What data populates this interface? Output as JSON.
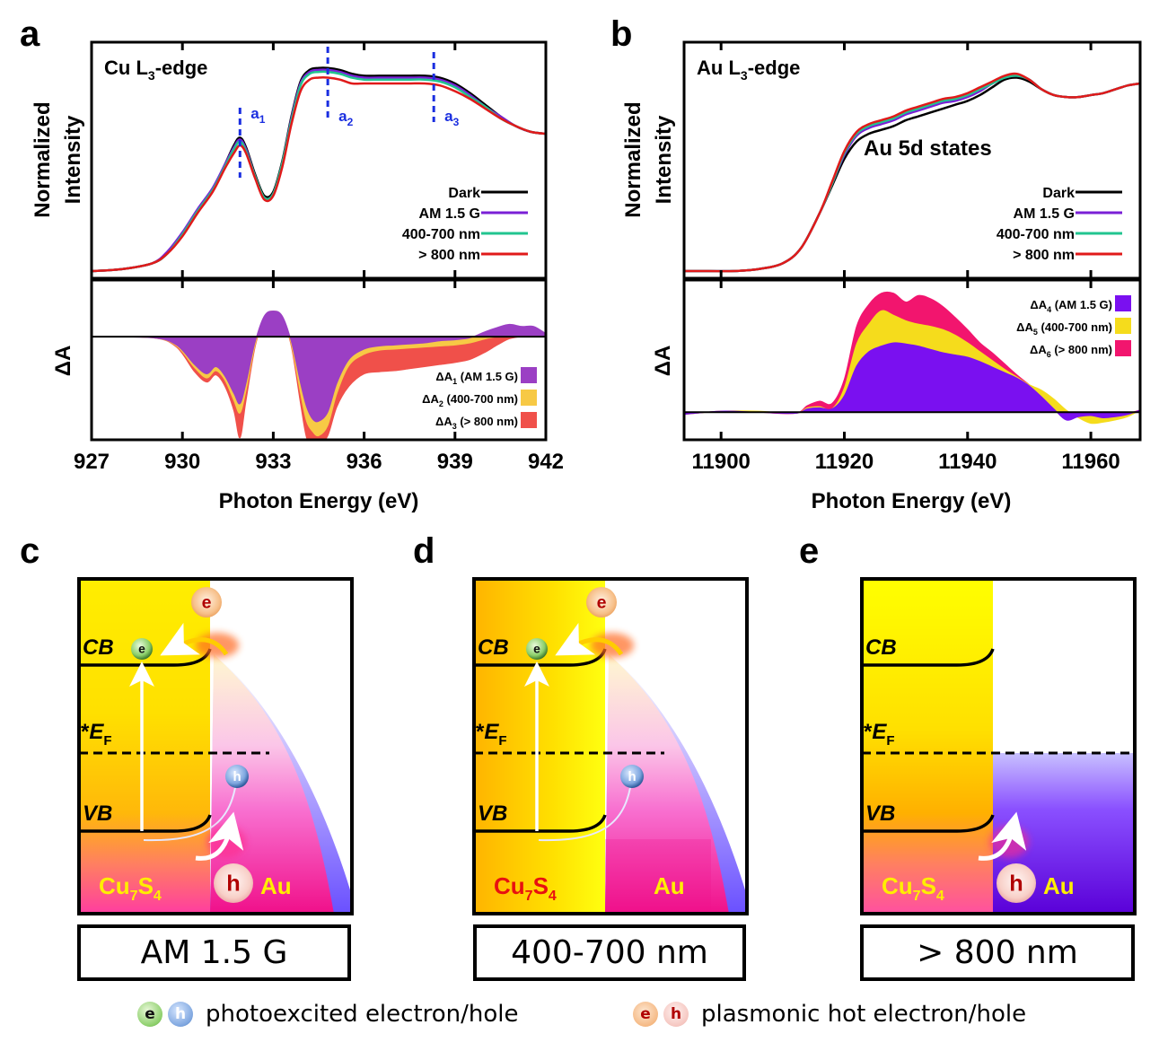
{
  "panel_letters": {
    "a": "a",
    "b": "b",
    "c": "c",
    "d": "d",
    "e": "e"
  },
  "chart_data": [
    {
      "id": "a-top",
      "type": "line",
      "title": "Cu L3-edge",
      "title_main": "Cu L",
      "title_sub": "3",
      "title_tail": "-edge",
      "xlabel": "Photon Energy (eV)",
      "ylabel": [
        "Normalized",
        "Intensity"
      ],
      "xlim": [
        927,
        942
      ],
      "ylim": [
        0,
        1.1
      ],
      "xticks": [
        927,
        930,
        933,
        936,
        939,
        942
      ],
      "legend_position": "bottom-right",
      "annotations": [
        {
          "x": 931.9,
          "label": "a",
          "sub": "1"
        },
        {
          "x": 934.8,
          "label": "a",
          "sub": "2"
        },
        {
          "x": 938.3,
          "label": "a",
          "sub": "3"
        }
      ],
      "x": [
        927,
        928,
        929,
        929.5,
        930,
        930.5,
        931,
        931.4,
        931.7,
        931.9,
        932.1,
        932.4,
        932.7,
        933.0,
        933.3,
        933.6,
        933.9,
        934.2,
        934.5,
        934.8,
        935.2,
        935.6,
        936.0,
        936.5,
        937.0,
        937.5,
        938.0,
        938.5,
        939.0,
        939.5,
        940.0,
        940.5,
        941.0,
        941.5,
        942.0
      ],
      "series": [
        {
          "name": "Dark",
          "color": "#000000",
          "values": [
            0.0,
            0.01,
            0.04,
            0.09,
            0.19,
            0.31,
            0.42,
            0.55,
            0.65,
            0.69,
            0.64,
            0.5,
            0.39,
            0.41,
            0.57,
            0.8,
            0.98,
            1.04,
            1.05,
            1.05,
            1.04,
            1.02,
            1.01,
            1.01,
            1.01,
            1.01,
            1.01,
            1.0,
            0.97,
            0.92,
            0.86,
            0.8,
            0.75,
            0.72,
            0.71
          ]
        },
        {
          "name": "AM 1.5 G",
          "color": "#7a1fd6",
          "values": [
            0.0,
            0.01,
            0.04,
            0.1,
            0.2,
            0.32,
            0.43,
            0.55,
            0.64,
            0.68,
            0.63,
            0.49,
            0.38,
            0.4,
            0.56,
            0.79,
            0.97,
            1.03,
            1.04,
            1.04,
            1.03,
            1.01,
            1.0,
            1.0,
            1.0,
            1.0,
            1.0,
            0.99,
            0.96,
            0.91,
            0.85,
            0.8,
            0.75,
            0.72,
            0.71
          ]
        },
        {
          "name": "400-700 nm",
          "color": "#22c48f",
          "values": [
            0.0,
            0.01,
            0.04,
            0.09,
            0.19,
            0.31,
            0.42,
            0.54,
            0.63,
            0.67,
            0.62,
            0.49,
            0.38,
            0.4,
            0.56,
            0.78,
            0.96,
            1.02,
            1.03,
            1.03,
            1.02,
            1.0,
            0.99,
            0.99,
            0.99,
            0.99,
            0.99,
            0.98,
            0.95,
            0.9,
            0.85,
            0.79,
            0.75,
            0.72,
            0.71
          ]
        },
        {
          "name": "> 800 nm",
          "color": "#e01a1a",
          "values": [
            0.0,
            0.01,
            0.04,
            0.09,
            0.18,
            0.3,
            0.41,
            0.53,
            0.61,
            0.65,
            0.61,
            0.48,
            0.37,
            0.39,
            0.54,
            0.76,
            0.93,
            0.99,
            1.0,
            1.0,
            0.99,
            0.97,
            0.97,
            0.97,
            0.97,
            0.97,
            0.97,
            0.96,
            0.93,
            0.89,
            0.84,
            0.79,
            0.75,
            0.72,
            0.71
          ]
        }
      ]
    },
    {
      "id": "a-bottom",
      "type": "area",
      "xlabel": "Photon Energy (eV)",
      "ylabel": "ΔA",
      "xlim": [
        927,
        942
      ],
      "ylim": [
        -1.0,
        0.55
      ],
      "xticks": [
        927,
        930,
        933,
        936,
        939,
        942
      ],
      "legend_position": "bottom-right",
      "x": [
        927,
        929,
        929.8,
        930.4,
        930.8,
        931.1,
        931.4,
        931.7,
        931.9,
        932.1,
        932.4,
        932.7,
        933.0,
        933.3,
        933.6,
        933.9,
        934.1,
        934.3,
        934.5,
        934.8,
        935.1,
        935.5,
        936.0,
        936.5,
        937.0,
        937.5,
        938.0,
        938.5,
        939.0,
        939.5,
        940.0,
        940.4,
        940.8,
        941.2,
        941.6,
        942.0
      ],
      "series": [
        {
          "name": "ΔA1 (AM 1.5 G)",
          "label_main": "ΔA",
          "label_sub": "1",
          "label_tail": " (AM 1.5 G)",
          "color": "#9b3fc4",
          "values": [
            0,
            -0.01,
            -0.08,
            -0.27,
            -0.36,
            -0.29,
            -0.38,
            -0.55,
            -0.65,
            -0.45,
            -0.05,
            0.2,
            0.25,
            0.2,
            -0.05,
            -0.45,
            -0.68,
            -0.8,
            -0.82,
            -0.73,
            -0.45,
            -0.22,
            -0.12,
            -0.09,
            -0.08,
            -0.07,
            -0.06,
            -0.04,
            -0.03,
            -0.01,
            0.05,
            0.09,
            0.12,
            0.1,
            0.1,
            0.03
          ]
        },
        {
          "name": "ΔA2 (400-700 nm)",
          "label_main": "ΔA",
          "label_sub": "2",
          "label_tail": " (400-700 nm)",
          "color": "#f7c945",
          "values": [
            0,
            -0.01,
            -0.09,
            -0.3,
            -0.4,
            -0.33,
            -0.42,
            -0.62,
            -0.74,
            -0.52,
            -0.08,
            0.19,
            0.25,
            0.19,
            -0.08,
            -0.55,
            -0.82,
            -0.92,
            -0.96,
            -0.86,
            -0.55,
            -0.28,
            -0.17,
            -0.13,
            -0.12,
            -0.11,
            -0.1,
            -0.09,
            -0.08,
            -0.06,
            -0.02,
            0.0,
            0.01,
            0.01,
            0.01,
            0.0
          ]
        },
        {
          "name": "ΔA3 (> 800 nm)",
          "label_main": "ΔA",
          "label_sub": "3",
          "label_tail": " (> 800 nm)",
          "color": "#f0504a",
          "values": [
            0,
            -0.01,
            -0.1,
            -0.34,
            -0.44,
            -0.37,
            -0.48,
            -0.72,
            -0.98,
            -0.62,
            -0.1,
            0.17,
            0.24,
            0.18,
            -0.1,
            -0.65,
            -0.98,
            -1.0,
            -1.05,
            -0.96,
            -0.68,
            -0.48,
            -0.36,
            -0.34,
            -0.33,
            -0.31,
            -0.29,
            -0.27,
            -0.25,
            -0.22,
            -0.15,
            -0.08,
            -0.02,
            0.0,
            0.0,
            0.0
          ]
        }
      ]
    },
    {
      "id": "b-top",
      "type": "line",
      "title": "Au L3-edge",
      "title_main": "Au L",
      "title_sub": "3",
      "title_tail": "-edge",
      "annotation_text": "Au 5d states",
      "xlabel": "Photon Energy (eV)",
      "ylabel": [
        "Normalized",
        "Intensity"
      ],
      "xlim": [
        11894,
        11968
      ],
      "ylim": [
        0,
        1.1
      ],
      "xticks": [
        11900,
        11920,
        11940,
        11960
      ],
      "legend_position": "bottom-right",
      "x": [
        11894,
        11898,
        11902,
        11906,
        11910,
        11913,
        11916,
        11918,
        11920,
        11922,
        11924,
        11926,
        11928,
        11930,
        11932,
        11934,
        11936,
        11938,
        11940,
        11942,
        11944,
        11946,
        11948,
        11950,
        11952,
        11954,
        11956,
        11958,
        11960,
        11962,
        11964,
        11966,
        11968
      ],
      "series": [
        {
          "name": "Dark",
          "color": "#000000",
          "values": [
            0.0,
            0.0,
            0.0,
            0.01,
            0.04,
            0.12,
            0.3,
            0.44,
            0.58,
            0.67,
            0.71,
            0.73,
            0.75,
            0.78,
            0.8,
            0.82,
            0.84,
            0.86,
            0.88,
            0.91,
            0.95,
            0.99,
            1.0,
            0.98,
            0.94,
            0.91,
            0.9,
            0.9,
            0.91,
            0.92,
            0.94,
            0.96,
            0.97
          ]
        },
        {
          "name": "AM 1.5 G",
          "color": "#7a1fd6",
          "values": [
            0.0,
            0.0,
            0.0,
            0.01,
            0.04,
            0.12,
            0.3,
            0.45,
            0.6,
            0.7,
            0.74,
            0.76,
            0.78,
            0.81,
            0.83,
            0.85,
            0.87,
            0.88,
            0.9,
            0.93,
            0.97,
            1.0,
            1.01,
            0.99,
            0.94,
            0.91,
            0.9,
            0.9,
            0.91,
            0.92,
            0.94,
            0.96,
            0.97
          ]
        },
        {
          "name": "400-700 nm",
          "color": "#22c48f",
          "values": [
            0.0,
            0.0,
            0.0,
            0.01,
            0.04,
            0.12,
            0.3,
            0.45,
            0.61,
            0.71,
            0.75,
            0.77,
            0.79,
            0.82,
            0.84,
            0.86,
            0.88,
            0.89,
            0.91,
            0.94,
            0.97,
            1.0,
            1.01,
            0.99,
            0.94,
            0.91,
            0.9,
            0.9,
            0.91,
            0.92,
            0.94,
            0.96,
            0.97
          ]
        },
        {
          "name": "> 800 nm",
          "color": "#e01a1a",
          "values": [
            0.0,
            0.0,
            0.0,
            0.01,
            0.04,
            0.12,
            0.3,
            0.46,
            0.62,
            0.72,
            0.76,
            0.78,
            0.8,
            0.83,
            0.85,
            0.87,
            0.89,
            0.9,
            0.92,
            0.95,
            0.98,
            1.01,
            1.02,
            0.99,
            0.94,
            0.91,
            0.9,
            0.9,
            0.91,
            0.92,
            0.94,
            0.96,
            0.97
          ]
        }
      ]
    },
    {
      "id": "b-bottom",
      "type": "area",
      "xlabel": "Photon Energy (eV)",
      "ylabel": "ΔA",
      "xlim": [
        11894,
        11968
      ],
      "ylim": [
        -0.25,
        1.2
      ],
      "xticks": [
        11900,
        11920,
        11940,
        11960
      ],
      "legend_position": "top-right",
      "x": [
        11894,
        11900,
        11906,
        11912,
        11914,
        11916,
        11918,
        11920,
        11922,
        11924,
        11926,
        11928,
        11930,
        11932,
        11934,
        11936,
        11938,
        11940,
        11942,
        11944,
        11946,
        11948,
        11950,
        11952,
        11954,
        11956,
        11958,
        11960,
        11962,
        11964,
        11966,
        11968
      ],
      "series": [
        {
          "name": "ΔA4 (AM 1.5 G)",
          "label_main": "ΔA",
          "label_sub": "4",
          "label_tail": " (AM 1.5 G)",
          "color": "#7a10f0",
          "values": [
            -0.02,
            0.01,
            0.0,
            -0.01,
            0.03,
            0.04,
            0.03,
            0.15,
            0.42,
            0.55,
            0.6,
            0.63,
            0.62,
            0.6,
            0.57,
            0.54,
            0.52,
            0.5,
            0.46,
            0.41,
            0.36,
            0.31,
            0.24,
            0.14,
            0.03,
            -0.07,
            -0.04,
            -0.03,
            -0.05,
            -0.04,
            -0.02,
            0.02
          ]
        },
        {
          "name": "ΔA5 (400-700 nm)",
          "label_main": "ΔA",
          "label_sub": "5",
          "label_tail": " (400-700 nm)",
          "color": "#f5dc1c",
          "values": [
            -0.02,
            0.01,
            0.01,
            -0.01,
            0.04,
            0.05,
            0.03,
            0.22,
            0.62,
            0.8,
            0.92,
            0.88,
            0.83,
            0.8,
            0.78,
            0.75,
            0.7,
            0.63,
            0.55,
            0.47,
            0.39,
            0.32,
            0.25,
            0.2,
            0.12,
            0.02,
            -0.05,
            -0.1,
            -0.09,
            -0.07,
            -0.04,
            0.02
          ]
        },
        {
          "name": "ΔA6 (> 800 nm)",
          "label_main": "ΔA",
          "label_sub": "6",
          "label_tail": " (> 800 nm)",
          "color": "#f2156e",
          "values": [
            -0.02,
            0.01,
            0.0,
            -0.01,
            0.06,
            0.1,
            0.08,
            0.3,
            0.78,
            0.98,
            1.08,
            1.08,
            1.0,
            1.06,
            1.03,
            0.96,
            0.86,
            0.75,
            0.63,
            0.54,
            0.44,
            0.34,
            0.25,
            0.16,
            0.06,
            -0.02,
            -0.04,
            -0.05,
            -0.05,
            -0.03,
            -0.01,
            0.02
          ]
        }
      ]
    }
  ],
  "diagrams": [
    {
      "id": "c",
      "condition": "AM 1.5 G",
      "cb": "CB",
      "vb": "VB",
      "ef_star": "*",
      "ef_main": "E",
      "ef_sub": "F",
      "cu_main": "Cu",
      "cu_sub1": "7",
      "cu_mid": "S",
      "cu_sub2": "4",
      "au": "Au",
      "e": "e",
      "h": "h"
    },
    {
      "id": "d",
      "condition": "400-700 nm",
      "cb": "CB",
      "vb": "VB",
      "ef_star": "*",
      "ef_main": "E",
      "ef_sub": "F",
      "cu_main": "Cu",
      "cu_sub1": "7",
      "cu_mid": "S",
      "cu_sub2": "4",
      "au": "Au",
      "e": "e",
      "h": "h"
    },
    {
      "id": "e",
      "condition": "> 800 nm",
      "cb": "CB",
      "vb": "VB",
      "ef_star": "*",
      "ef_main": "E",
      "ef_sub": "F",
      "cu_main": "Cu",
      "cu_sub1": "7",
      "cu_mid": "S",
      "cu_sub2": "4",
      "au": "Au",
      "e": "e",
      "h": "h"
    }
  ],
  "bottom_legend": {
    "photo_e": "e",
    "photo_h": "h",
    "photo_text": "photoexcited electron/hole",
    "hot_e": "e",
    "hot_h": "h",
    "hot_text": "plasmonic hot electron/hole"
  }
}
